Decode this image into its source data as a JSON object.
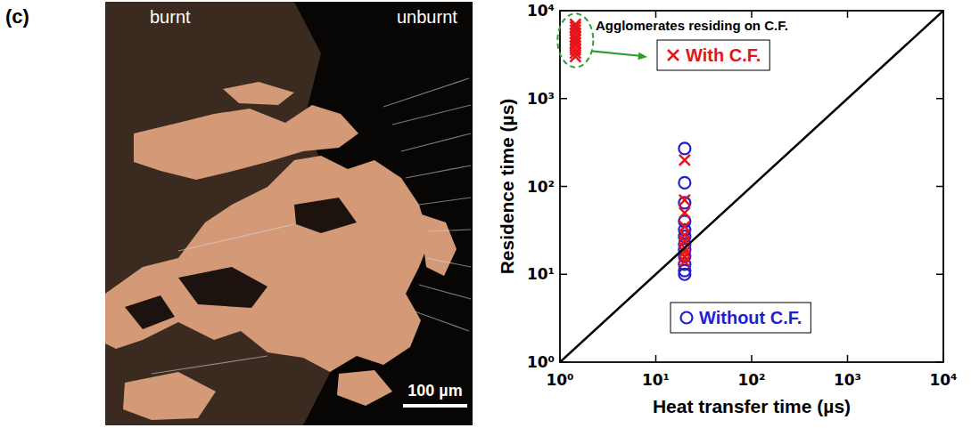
{
  "panel_label": "(c)",
  "photo": {
    "labels": [
      "burnt",
      "unburnt"
    ],
    "scale_bar": "100 µm"
  },
  "chart_data": {
    "type": "scatter",
    "x_label": "Heat transfer time (µs)",
    "y_label": "Residence time (µs)",
    "log": true,
    "xlim": [
      1,
      10000
    ],
    "ylim": [
      1,
      10000
    ],
    "xticks": [
      {
        "value": 1,
        "label": "10⁰"
      },
      {
        "value": 10,
        "label": "10¹"
      },
      {
        "value": 100,
        "label": "10²"
      },
      {
        "value": 1000,
        "label": "10³"
      },
      {
        "value": 10000,
        "label": "10⁴"
      }
    ],
    "yticks": [
      {
        "value": 1,
        "label": "10⁰"
      },
      {
        "value": 10,
        "label": "10¹"
      },
      {
        "value": 100,
        "label": "10²"
      },
      {
        "value": 1000,
        "label": "10³"
      },
      {
        "value": 10000,
        "label": "10⁴"
      }
    ],
    "legend": "right",
    "annotations": [
      "Agglomerates residing on C.F."
    ],
    "series": [
      {
        "name": "Without C.F.",
        "color": "#1f1fd6",
        "marker": "circle",
        "x": [
          20,
          20,
          20,
          20,
          20,
          20,
          20,
          20,
          20,
          20,
          20,
          20
        ],
        "values": [
          270,
          110,
          65,
          40,
          32,
          27,
          22,
          19,
          16,
          13,
          11,
          10
        ]
      },
      {
        "name": "With C.F.",
        "color": "#e8141c",
        "marker": "x",
        "x": [
          1.45,
          1.45,
          1.45,
          1.45,
          1.45,
          1.45,
          1.45,
          1.45,
          1.45,
          1.45,
          1.45,
          20,
          20,
          20,
          20,
          20,
          20,
          20,
          20,
          20,
          20
        ],
        "values": [
          3000,
          3300,
          3600,
          4000,
          4300,
          4700,
          5000,
          5500,
          6000,
          6500,
          7000,
          200,
          70,
          50,
          35,
          28,
          24,
          20,
          18,
          16,
          14
        ]
      },
      {
        "type": "line",
        "color": "#000000",
        "line_style": "solid",
        "x": [
          1,
          10000
        ],
        "values": [
          1,
          10000
        ]
      }
    ]
  }
}
